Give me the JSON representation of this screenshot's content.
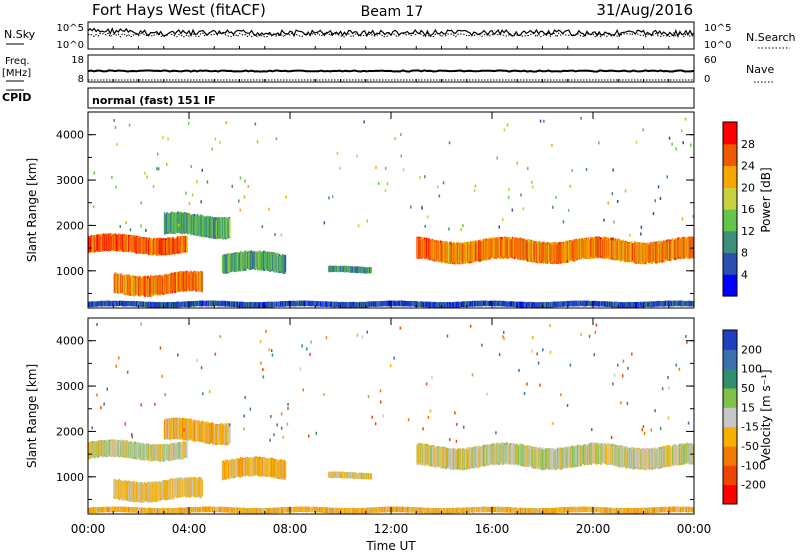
{
  "header": {
    "station": "Fort Hays West (fitACF)",
    "beam": "Beam 17",
    "date": "31/Aug/2016"
  },
  "noise_panel": {
    "left_label": "N.Sky",
    "right_label": "N.Search",
    "left_ticks": [
      "10^5",
      "10^0"
    ],
    "right_ticks": [
      "10^5",
      "10^0"
    ]
  },
  "freq_panel": {
    "left_label_1": "Freq.",
    "left_label_2": "[MHz]",
    "left_ticks": [
      "18",
      "8"
    ],
    "right_label": "Nave",
    "right_ticks": [
      "60",
      "0"
    ]
  },
  "cpid_panel": {
    "label": "CPID",
    "text": "normal (fast) 151 IF"
  },
  "power_panel": {
    "ylabel": "Slant Range [km]",
    "yticks": [
      "1000",
      "2000",
      "3000",
      "4000"
    ],
    "colorbar_label": "Power [dB]",
    "colorbar_ticks": [
      "4",
      "8",
      "12",
      "16",
      "20",
      "24",
      "28"
    ],
    "colors": [
      "#0000ff",
      "#2b4fb0",
      "#3e8f7a",
      "#63c54a",
      "#c8d23c",
      "#f6a800",
      "#f05a00",
      "#ff0000"
    ]
  },
  "velocity_panel": {
    "ylabel": "Slant Range [km]",
    "yticks": [
      "1000",
      "2000",
      "3000",
      "4000"
    ],
    "colorbar_label": "Velocity [m s⁻¹]",
    "colorbar_ticks": [
      "200",
      "100",
      "50",
      "15",
      "-15",
      "-50",
      "-100",
      "-200"
    ],
    "colors": [
      "#1f3fbf",
      "#3a6fb0",
      "#2f8f6f",
      "#7fc24a",
      "#c8c8c8",
      "#f7b000",
      "#f27a00",
      "#f04500",
      "#ff0000"
    ]
  },
  "xaxis": {
    "label": "Time UT",
    "ticks": [
      "00:00",
      "04:00",
      "08:00",
      "12:00",
      "16:00",
      "20:00",
      "00:00"
    ]
  },
  "chart_data": {
    "type": "heatmap",
    "x_range_hours": [
      0,
      24
    ],
    "y_range_km": [
      180,
      4500
    ],
    "regions": [
      {
        "t0": 0.0,
        "t1": 3.9,
        "r0": 1380,
        "r1": 1780,
        "power": 26,
        "velocity": 0
      },
      {
        "t0": 1.0,
        "t1": 4.5,
        "r0": 480,
        "r1": 950,
        "power": 24,
        "velocity": -20
      },
      {
        "t0": 3.0,
        "t1": 5.6,
        "r0": 1750,
        "r1": 2250,
        "power": 12,
        "velocity": -30
      },
      {
        "t0": 5.3,
        "t1": 7.8,
        "r0": 950,
        "r1": 1400,
        "power": 12,
        "velocity": -30
      },
      {
        "t0": 9.5,
        "t1": 11.2,
        "r0": 950,
        "r1": 1100,
        "power": 11,
        "velocity": -10
      },
      {
        "t0": 13.0,
        "t1": 24.0,
        "r0": 1200,
        "r1": 1700,
        "power": 24,
        "velocity": 0
      },
      {
        "t0": 0.0,
        "t1": 24.0,
        "r0": 200,
        "r1": 330,
        "power": 6,
        "velocity": -30
      }
    ]
  }
}
